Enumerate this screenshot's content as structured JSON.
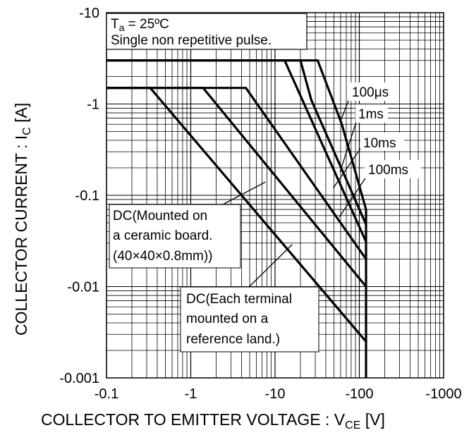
{
  "chart_data": {
    "type": "line",
    "title": "",
    "xlabel": {
      "main": "COLLECTOR TO EMITTER VOLTAGE : V",
      "sub": "CE",
      "unit": " [V]"
    },
    "ylabel": {
      "main": "COLLECTOR CURRENT : I",
      "sub": "C",
      "unit": " [A]"
    },
    "x_scale": "log",
    "y_scale": "log",
    "x_axis_sign": "negative",
    "y_axis_sign": "negative",
    "xlim": [
      0.1,
      1000
    ],
    "ylim": [
      0.001,
      10
    ],
    "x_tick_values": [
      0.1,
      1,
      10,
      100,
      1000
    ],
    "y_tick_values": [
      0.001,
      0.01,
      0.1,
      1,
      10
    ],
    "x_tick_labels": [
      "-0.1",
      "-1",
      "-10",
      "-100",
      "-1000"
    ],
    "y_tick_labels": [
      "-0.001",
      "-0.01",
      "-0.1",
      "-1",
      "-10"
    ],
    "grid": true,
    "legend": "none",
    "conditions": {
      "line1_prefix": "T",
      "line1_sub": "a",
      "line1_rest": " = 25ºC",
      "line2": "Single non repetitive pulse."
    },
    "series": [
      {
        "name": "100μs",
        "x": [
          0.1,
          32,
          62,
          120,
          120
        ],
        "y": [
          3,
          3,
          0.6,
          0.07,
          0.001
        ]
      },
      {
        "name": "1ms",
        "x": [
          0.1,
          20,
          27,
          120
        ],
        "y": [
          3,
          3,
          1.1,
          0.048
        ]
      },
      {
        "name": "10ms",
        "x": [
          0.1,
          13,
          120
        ],
        "y": [
          3,
          3,
          0.031
        ]
      },
      {
        "name": "100ms",
        "x": [
          0.1,
          4.5,
          120
        ],
        "y": [
          1.5,
          1.5,
          0.02
        ]
      },
      {
        "name": "DC(Mounted on a ceramic board. (40×40×0.8mm))",
        "x": [
          0.1,
          1.4,
          120
        ],
        "y": [
          1.5,
          1.5,
          0.01
        ]
      },
      {
        "name": "DC(Each terminal mounted on a reference land.)",
        "x": [
          0.1,
          0.33,
          120
        ],
        "y": [
          1.5,
          1.5,
          0.0025
        ]
      }
    ],
    "annotations": [
      {
        "lines": [
          "100μs"
        ],
        "series": 0,
        "arrow_to": {
          "x": 59,
          "y": 0.63
        }
      },
      {
        "lines": [
          "1ms"
        ],
        "series": 1,
        "arrow_to": {
          "x": 59,
          "y": 0.18
        }
      },
      {
        "lines": [
          "10ms"
        ],
        "series": 2,
        "arrow_to": {
          "x": 49,
          "y": 0.12
        }
      },
      {
        "lines": [
          "100ms"
        ],
        "series": 3,
        "arrow_to": {
          "x": 58,
          "y": 0.058
        }
      },
      {
        "lines": [
          "DC(Mounted on",
          "a ceramic board.",
          "(40×40×0.8mm))"
        ],
        "series": 4,
        "arrow_to": {
          "x": 7.7,
          "y": 0.14
        }
      },
      {
        "lines": [
          "DC(Each terminal",
          "mounted on a",
          "reference land.)"
        ],
        "series": 5,
        "arrow_to": {
          "x": 16,
          "y": 0.029
        }
      }
    ]
  }
}
